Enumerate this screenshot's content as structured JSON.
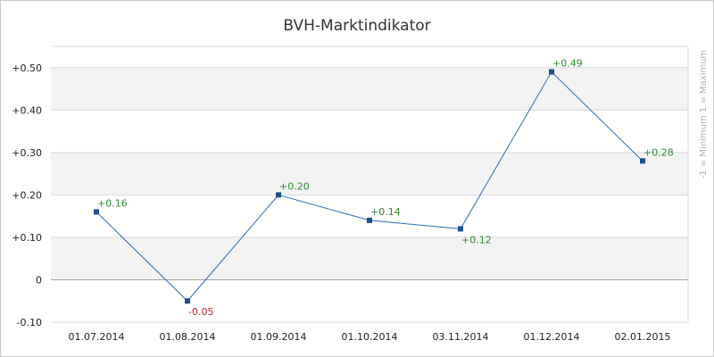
{
  "chart_data": {
    "type": "line",
    "title": "BVH-Marktindikator",
    "side_label": "-1 = Minimum   1 = Maximum",
    "categories": [
      "01.07.2014",
      "01.08.2014",
      "01.09.2014",
      "01.10.2014",
      "03.11.2014",
      "01.12.2014",
      "02.01.2015"
    ],
    "series": [
      {
        "values": [
          0.16,
          -0.05,
          0.2,
          0.14,
          0.12,
          0.49,
          0.28
        ],
        "labels": [
          "+0.16",
          "-0.05",
          "+0.20",
          "+0.14",
          "+0.12",
          "+0.49",
          "+0.28"
        ]
      }
    ],
    "y_ticks": [
      -0.1,
      0,
      0.1,
      0.2,
      0.3,
      0.4,
      0.5
    ],
    "y_tick_labels": [
      "-0.10",
      "0",
      "+0.10",
      "+0.20",
      "+0.30",
      "+0.40",
      "+0.50"
    ],
    "ylim": [
      -0.1,
      0.55
    ],
    "grid": true,
    "colors": {
      "line": "#2a6fb5",
      "marker": "#1f4e8c",
      "positive_label": "#2e8b2e",
      "negative_label": "#c0202a",
      "band": "#f3f3f3",
      "gridline": "#d8d8d8",
      "zero_line": "#a0a0a0"
    }
  }
}
